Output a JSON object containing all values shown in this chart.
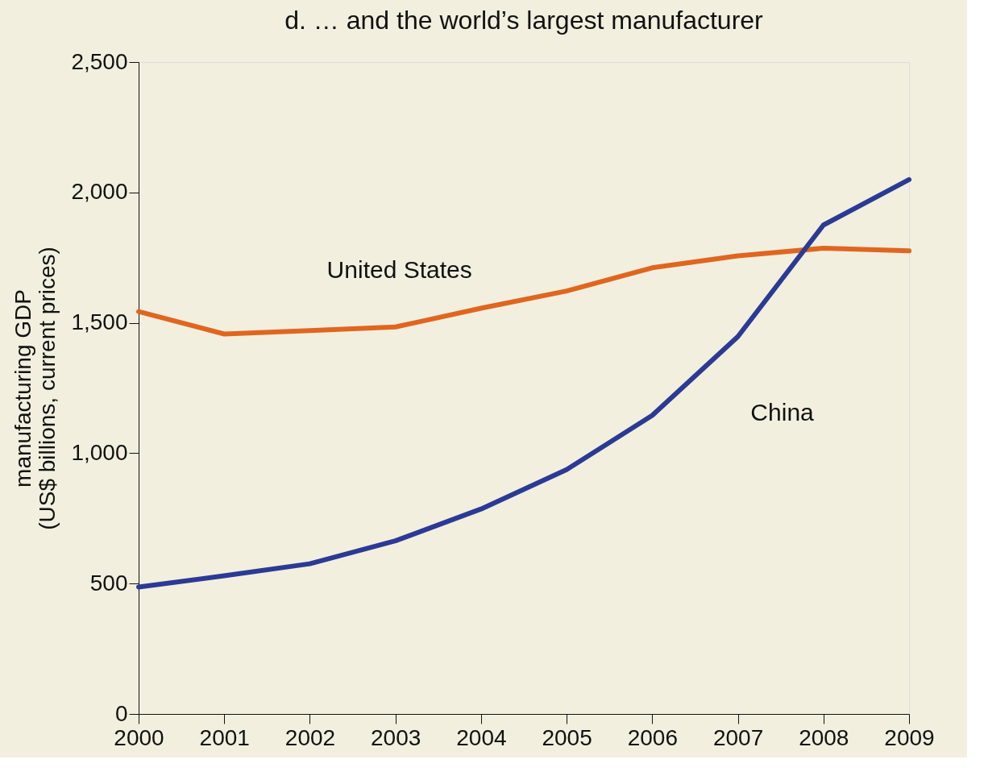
{
  "chart_data": {
    "type": "line",
    "title": "d. … and the world’s largest manufacturer",
    "ylabel": "manufacturing GDP (US$ billions, current prices)",
    "x": [
      2000,
      2001,
      2002,
      2003,
      2004,
      2005,
      2006,
      2007,
      2008,
      2009
    ],
    "series": [
      {
        "name": "United States",
        "color": "#e0661f",
        "values": [
          1543,
          1457,
          1470,
          1484,
          1556,
          1622,
          1711,
          1757,
          1786,
          1776
        ]
      },
      {
        "name": "China",
        "color": "#2b3a94",
        "values": [
          487,
          530,
          576,
          664,
          786,
          937,
          1145,
          1447,
          1875,
          2049
        ]
      }
    ],
    "xlim": [
      2000,
      2009
    ],
    "xticks": [
      2000,
      2001,
      2002,
      2003,
      2004,
      2005,
      2006,
      2007,
      2008,
      2009
    ],
    "ylim": [
      0,
      2500
    ],
    "yticks": [
      0,
      500,
      {
        "value": 1000,
        "label": "1,000"
      },
      {
        "value": 1500,
        "label": "1,500"
      },
      {
        "value": 2000,
        "label": "2,000"
      },
      {
        "value": 2500,
        "label": "2,500"
      }
    ],
    "grid": false,
    "legend": false,
    "marker": "none",
    "line_style": "solid"
  }
}
